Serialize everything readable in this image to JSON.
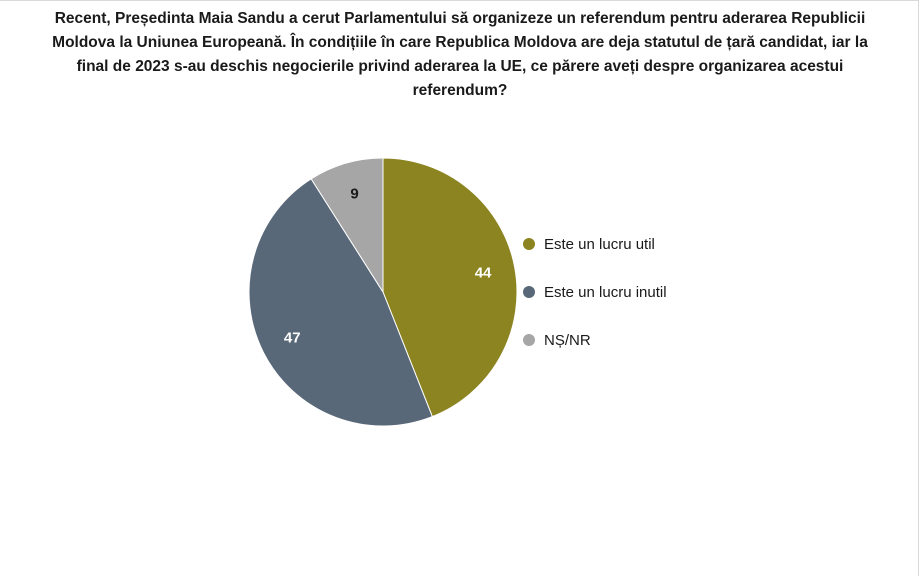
{
  "chart_data": {
    "type": "pie",
    "title": "Recent, Președinta Maia Sandu a cerut Parlamentului să organizeze un referendum pentru aderarea Republicii Moldova la Uniunea Europeană. În condițiile în care Republica Moldova are deja statutul de țară candidat, iar la final de 2023 s-au deschis negocierile privind aderarea la UE, ce părere aveți despre organizarea acestui referendum?",
    "categories": [
      "Este un lucru util",
      "Este un lucru inutil",
      "NȘ/NR"
    ],
    "values": [
      44,
      47,
      9
    ],
    "colors": [
      "#8c8420",
      "#596878",
      "#a6a6a6"
    ],
    "label_colors": [
      "#ffffff",
      "#ffffff",
      "#1a1a1a"
    ],
    "legend_position": "right"
  }
}
